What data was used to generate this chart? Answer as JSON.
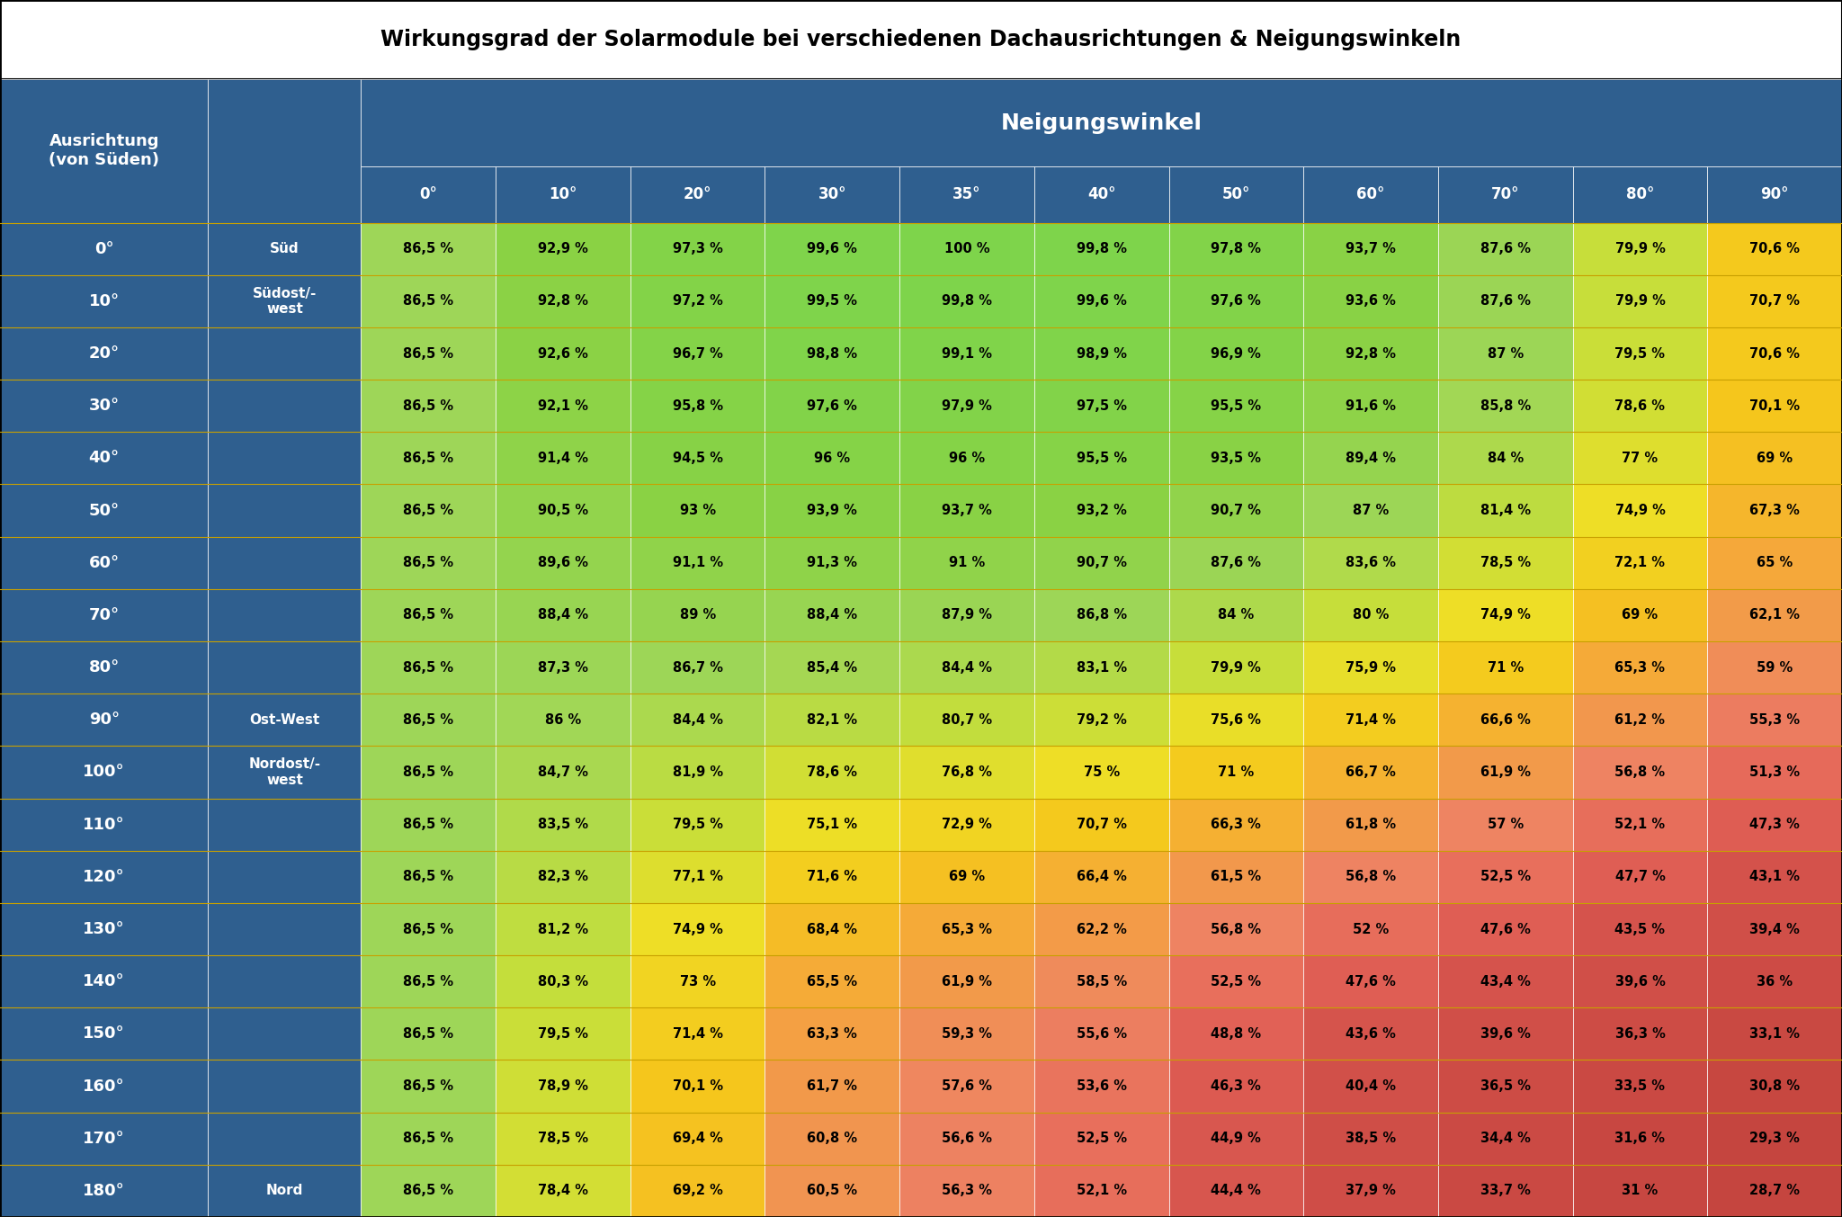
{
  "title": "Wirkungsgrad der Solarmodule bei verschiedenen Dachausrichtungen & Neigungswinkeln",
  "col_header_label": "Neigungswinkel",
  "row_header_label": "Ausrichtung\n(von Süden)",
  "angle_cols": [
    "0°",
    "10°",
    "20°",
    "30°",
    "35°",
    "40°",
    "50°",
    "60°",
    "70°",
    "80°",
    "90°"
  ],
  "rows": [
    {
      "ausrichtung": "0°",
      "label": "Süd",
      "values": [
        86.5,
        92.9,
        97.3,
        99.6,
        100.0,
        99.8,
        97.8,
        93.7,
        87.6,
        79.9,
        70.6
      ]
    },
    {
      "ausrichtung": "10°",
      "label": "Südost/-\nwest",
      "values": [
        86.5,
        92.8,
        97.2,
        99.5,
        99.8,
        99.6,
        97.6,
        93.6,
        87.6,
        79.9,
        70.7
      ]
    },
    {
      "ausrichtung": "20°",
      "label": "",
      "values": [
        86.5,
        92.6,
        96.7,
        98.8,
        99.1,
        98.9,
        96.9,
        92.8,
        87.0,
        79.5,
        70.6
      ]
    },
    {
      "ausrichtung": "30°",
      "label": "",
      "values": [
        86.5,
        92.1,
        95.8,
        97.6,
        97.9,
        97.5,
        95.5,
        91.6,
        85.8,
        78.6,
        70.1
      ]
    },
    {
      "ausrichtung": "40°",
      "label": "",
      "values": [
        86.5,
        91.4,
        94.5,
        96.0,
        96.0,
        95.5,
        93.5,
        89.4,
        84.0,
        77.0,
        69.0
      ]
    },
    {
      "ausrichtung": "50°",
      "label": "",
      "values": [
        86.5,
        90.5,
        93.0,
        93.9,
        93.7,
        93.2,
        90.7,
        87.0,
        81.4,
        74.9,
        67.3
      ]
    },
    {
      "ausrichtung": "60°",
      "label": "",
      "values": [
        86.5,
        89.6,
        91.1,
        91.3,
        91.0,
        90.7,
        87.6,
        83.6,
        78.5,
        72.1,
        65.0
      ]
    },
    {
      "ausrichtung": "70°",
      "label": "",
      "values": [
        86.5,
        88.4,
        89.0,
        88.4,
        87.9,
        86.8,
        84.0,
        80.0,
        74.9,
        69.0,
        62.1
      ]
    },
    {
      "ausrichtung": "80°",
      "label": "",
      "values": [
        86.5,
        87.3,
        86.7,
        85.4,
        84.4,
        83.1,
        79.9,
        75.9,
        71.0,
        65.3,
        59.0
      ]
    },
    {
      "ausrichtung": "90°",
      "label": "Ost-West",
      "values": [
        86.5,
        86.0,
        84.4,
        82.1,
        80.7,
        79.2,
        75.6,
        71.4,
        66.6,
        61.2,
        55.3
      ]
    },
    {
      "ausrichtung": "100°",
      "label": "Nordost/-\nwest",
      "values": [
        86.5,
        84.7,
        81.9,
        78.6,
        76.8,
        75.0,
        71.0,
        66.7,
        61.9,
        56.8,
        51.3
      ]
    },
    {
      "ausrichtung": "110°",
      "label": "",
      "values": [
        86.5,
        83.5,
        79.5,
        75.1,
        72.9,
        70.7,
        66.3,
        61.8,
        57.0,
        52.1,
        47.3
      ]
    },
    {
      "ausrichtung": "120°",
      "label": "",
      "values": [
        86.5,
        82.3,
        77.1,
        71.6,
        69.0,
        66.4,
        61.5,
        56.8,
        52.5,
        47.7,
        43.1
      ]
    },
    {
      "ausrichtung": "130°",
      "label": "",
      "values": [
        86.5,
        81.2,
        74.9,
        68.4,
        65.3,
        62.2,
        56.8,
        52.0,
        47.6,
        43.5,
        39.4
      ]
    },
    {
      "ausrichtung": "140°",
      "label": "",
      "values": [
        86.5,
        80.3,
        73.0,
        65.5,
        61.9,
        58.5,
        52.5,
        47.6,
        43.4,
        39.6,
        36.0
      ]
    },
    {
      "ausrichtung": "150°",
      "label": "",
      "values": [
        86.5,
        79.5,
        71.4,
        63.3,
        59.3,
        55.6,
        48.8,
        43.6,
        39.6,
        36.3,
        33.1
      ]
    },
    {
      "ausrichtung": "160°",
      "label": "",
      "values": [
        86.5,
        78.9,
        70.1,
        61.7,
        57.6,
        53.6,
        46.3,
        40.4,
        36.5,
        33.5,
        30.8
      ]
    },
    {
      "ausrichtung": "170°",
      "label": "",
      "values": [
        86.5,
        78.5,
        69.4,
        60.8,
        56.6,
        52.5,
        44.9,
        38.5,
        34.4,
        31.6,
        29.3
      ]
    },
    {
      "ausrichtung": "180°",
      "label": "Nord",
      "values": [
        86.5,
        78.4,
        69.2,
        60.5,
        56.3,
        52.1,
        44.4,
        37.9,
        33.7,
        31.0,
        28.7
      ]
    }
  ],
  "display_values": [
    [
      "86,5 %",
      "92,9 %",
      "97,3 %",
      "99,6 %",
      "100 %",
      "99,8 %",
      "97,8 %",
      "93,7 %",
      "87,6 %",
      "79,9 %",
      "70,6 %"
    ],
    [
      "86,5 %",
      "92,8 %",
      "97,2 %",
      "99,5 %",
      "99,8 %",
      "99,6 %",
      "97,6 %",
      "93,6 %",
      "87,6 %",
      "79,9 %",
      "70,7 %"
    ],
    [
      "86,5 %",
      "92,6 %",
      "96,7 %",
      "98,8 %",
      "99,1 %",
      "98,9 %",
      "96,9 %",
      "92,8 %",
      "87 %",
      "79,5 %",
      "70,6 %"
    ],
    [
      "86,5 %",
      "92,1 %",
      "95,8 %",
      "97,6 %",
      "97,9 %",
      "97,5 %",
      "95,5 %",
      "91,6 %",
      "85,8 %",
      "78,6 %",
      "70,1 %"
    ],
    [
      "86,5 %",
      "91,4 %",
      "94,5 %",
      "96 %",
      "96 %",
      "95,5 %",
      "93,5 %",
      "89,4 %",
      "84 %",
      "77 %",
      "69 %"
    ],
    [
      "86,5 %",
      "90,5 %",
      "93 %",
      "93,9 %",
      "93,7 %",
      "93,2 %",
      "90,7 %",
      "87 %",
      "81,4 %",
      "74,9 %",
      "67,3 %"
    ],
    [
      "86,5 %",
      "89,6 %",
      "91,1 %",
      "91,3 %",
      "91 %",
      "90,7 %",
      "87,6 %",
      "83,6 %",
      "78,5 %",
      "72,1 %",
      "65 %"
    ],
    [
      "86,5 %",
      "88,4 %",
      "89 %",
      "88,4 %",
      "87,9 %",
      "86,8 %",
      "84 %",
      "80 %",
      "74,9 %",
      "69 %",
      "62,1 %"
    ],
    [
      "86,5 %",
      "87,3 %",
      "86,7 %",
      "85,4 %",
      "84,4 %",
      "83,1 %",
      "79,9 %",
      "75,9 %",
      "71 %",
      "65,3 %",
      "59 %"
    ],
    [
      "86,5 %",
      "86 %",
      "84,4 %",
      "82,1 %",
      "80,7 %",
      "79,2 %",
      "75,6 %",
      "71,4 %",
      "66,6 %",
      "61,2 %",
      "55,3 %"
    ],
    [
      "86,5 %",
      "84,7 %",
      "81,9 %",
      "78,6 %",
      "76,8 %",
      "75 %",
      "71 %",
      "66,7 %",
      "61,9 %",
      "56,8 %",
      "51,3 %"
    ],
    [
      "86,5 %",
      "83,5 %",
      "79,5 %",
      "75,1 %",
      "72,9 %",
      "70,7 %",
      "66,3 %",
      "61,8 %",
      "57 %",
      "52,1 %",
      "47,3 %"
    ],
    [
      "86,5 %",
      "82,3 %",
      "77,1 %",
      "71,6 %",
      "69 %",
      "66,4 %",
      "61,5 %",
      "56,8 %",
      "52,5 %",
      "47,7 %",
      "43,1 %"
    ],
    [
      "86,5 %",
      "81,2 %",
      "74,9 %",
      "68,4 %",
      "65,3 %",
      "62,2 %",
      "56,8 %",
      "52 %",
      "47,6 %",
      "43,5 %",
      "39,4 %"
    ],
    [
      "86,5 %",
      "80,3 %",
      "73 %",
      "65,5 %",
      "61,9 %",
      "58,5 %",
      "52,5 %",
      "47,6 %",
      "43,4 %",
      "39,6 %",
      "36 %"
    ],
    [
      "86,5 %",
      "79,5 %",
      "71,4 %",
      "63,3 %",
      "59,3 %",
      "55,6 %",
      "48,8 %",
      "43,6 %",
      "39,6 %",
      "36,3 %",
      "33,1 %"
    ],
    [
      "86,5 %",
      "78,9 %",
      "70,1 %",
      "61,7 %",
      "57,6 %",
      "53,6 %",
      "46,3 %",
      "40,4 %",
      "36,5 %",
      "33,5 %",
      "30,8 %"
    ],
    [
      "86,5 %",
      "78,5 %",
      "69,4 %",
      "60,8 %",
      "56,6 %",
      "52,5 %",
      "44,9 %",
      "38,5 %",
      "34,4 %",
      "31,6 %",
      "29,3 %"
    ],
    [
      "86,5 %",
      "78,4 %",
      "69,2 %",
      "60,5 %",
      "56,3 %",
      "52,1 %",
      "44,4 %",
      "37,9 %",
      "33,7 %",
      "31 %",
      "28,7 %"
    ]
  ],
  "header_bg": "#2F5F8F",
  "header_text": "#FFFFFF",
  "row_border_color": "#C8A000"
}
